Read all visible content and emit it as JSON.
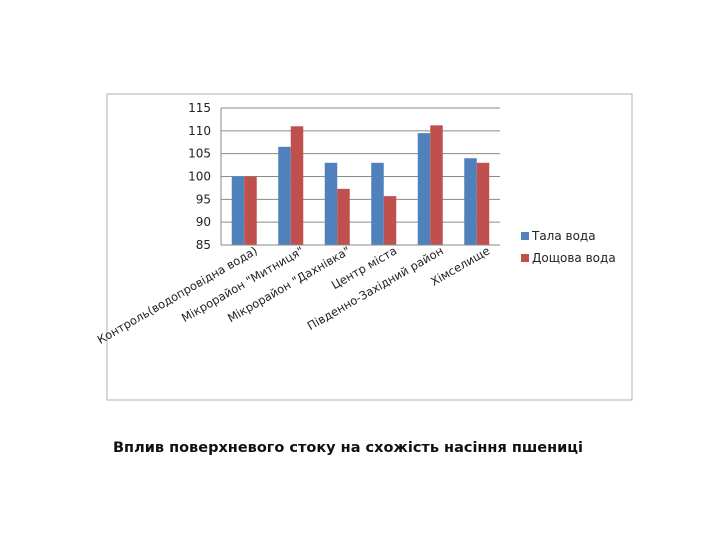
{
  "caption": "Вплив поверхневого стоку на схожість насіння пшениці",
  "chart_data": {
    "type": "bar",
    "title": "",
    "xlabel": "",
    "ylabel": "",
    "ylim": [
      85,
      115
    ],
    "yticks": [
      85,
      90,
      95,
      100,
      105,
      110,
      115
    ],
    "grid": true,
    "legend_position": "right",
    "categories": [
      "Контроль(водопровідна вода)",
      "Мікрорайон \"Митниця\"",
      "Мікрорайон \"Дахнівка\"",
      "Центр міста",
      "Південно-Західний район",
      "Хімселище"
    ],
    "series": [
      {
        "name": "Тала вода",
        "color": "#4f81bd",
        "values": [
          100,
          106.5,
          103,
          103,
          109.5,
          104
        ]
      },
      {
        "name": "Дощова вода",
        "color": "#c0504d",
        "values": [
          100,
          111,
          97.3,
          95.7,
          111.2,
          103
        ]
      }
    ]
  }
}
